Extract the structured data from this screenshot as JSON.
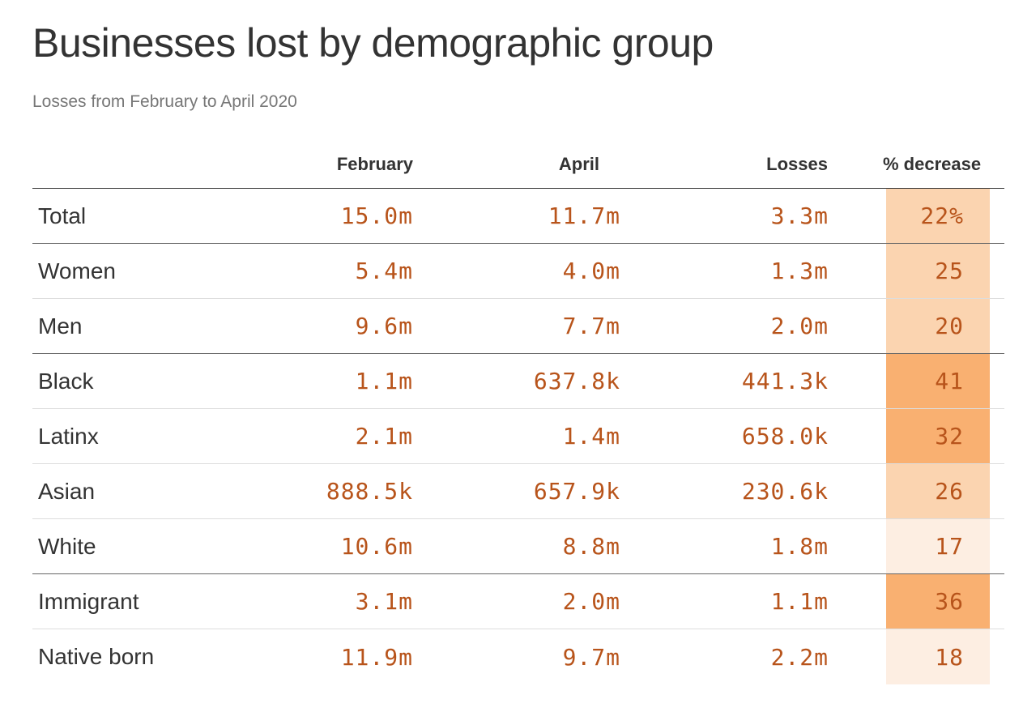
{
  "title": "Businesses lost by demographic group",
  "subtitle": "Losses from February to April 2020",
  "columns": {
    "group": "",
    "february": "February",
    "april": "April",
    "losses": "Losses",
    "pct": "% decrease"
  },
  "colors": {
    "number_text": "#b8541b",
    "scale_low": "#fdeee2",
    "scale_mid": "#fbd4b0",
    "scale_high": "#f9b071"
  },
  "chart_data": {
    "type": "table",
    "title": "Businesses lost by demographic group",
    "subtitle": "Losses from February to April 2020",
    "columns": [
      "",
      "February",
      "April",
      "Losses",
      "% decrease"
    ],
    "rows": [
      {
        "group": "Total",
        "february": "15.0m",
        "april": "11.7m",
        "losses": "3.3m",
        "pct_label": "22%",
        "pct": 22
      },
      {
        "group": "Women",
        "february": "5.4m",
        "april": "4.0m",
        "losses": "1.3m",
        "pct_label": "25",
        "pct": 25
      },
      {
        "group": "Men",
        "february": "9.6m",
        "april": "7.7m",
        "losses": "2.0m",
        "pct_label": "20",
        "pct": 20
      },
      {
        "group": "Black",
        "february": "1.1m",
        "april": "637.8k",
        "losses": "441.3k",
        "pct_label": "41",
        "pct": 41
      },
      {
        "group": "Latinx",
        "february": "2.1m",
        "april": "1.4m",
        "losses": "658.0k",
        "pct_label": "32",
        "pct": 32
      },
      {
        "group": "Asian",
        "february": "888.5k",
        "april": "657.9k",
        "losses": "230.6k",
        "pct_label": "26",
        "pct": 26
      },
      {
        "group": "White",
        "february": "10.6m",
        "april": "8.8m",
        "losses": "1.8m",
        "pct_label": "17",
        "pct": 17
      },
      {
        "group": "Immigrant",
        "february": "3.1m",
        "april": "2.0m",
        "losses": "1.1m",
        "pct_label": "36",
        "pct": 36
      },
      {
        "group": "Native born",
        "february": "11.9m",
        "april": "9.7m",
        "losses": "2.2m",
        "pct_label": "18",
        "pct": 18
      }
    ]
  }
}
